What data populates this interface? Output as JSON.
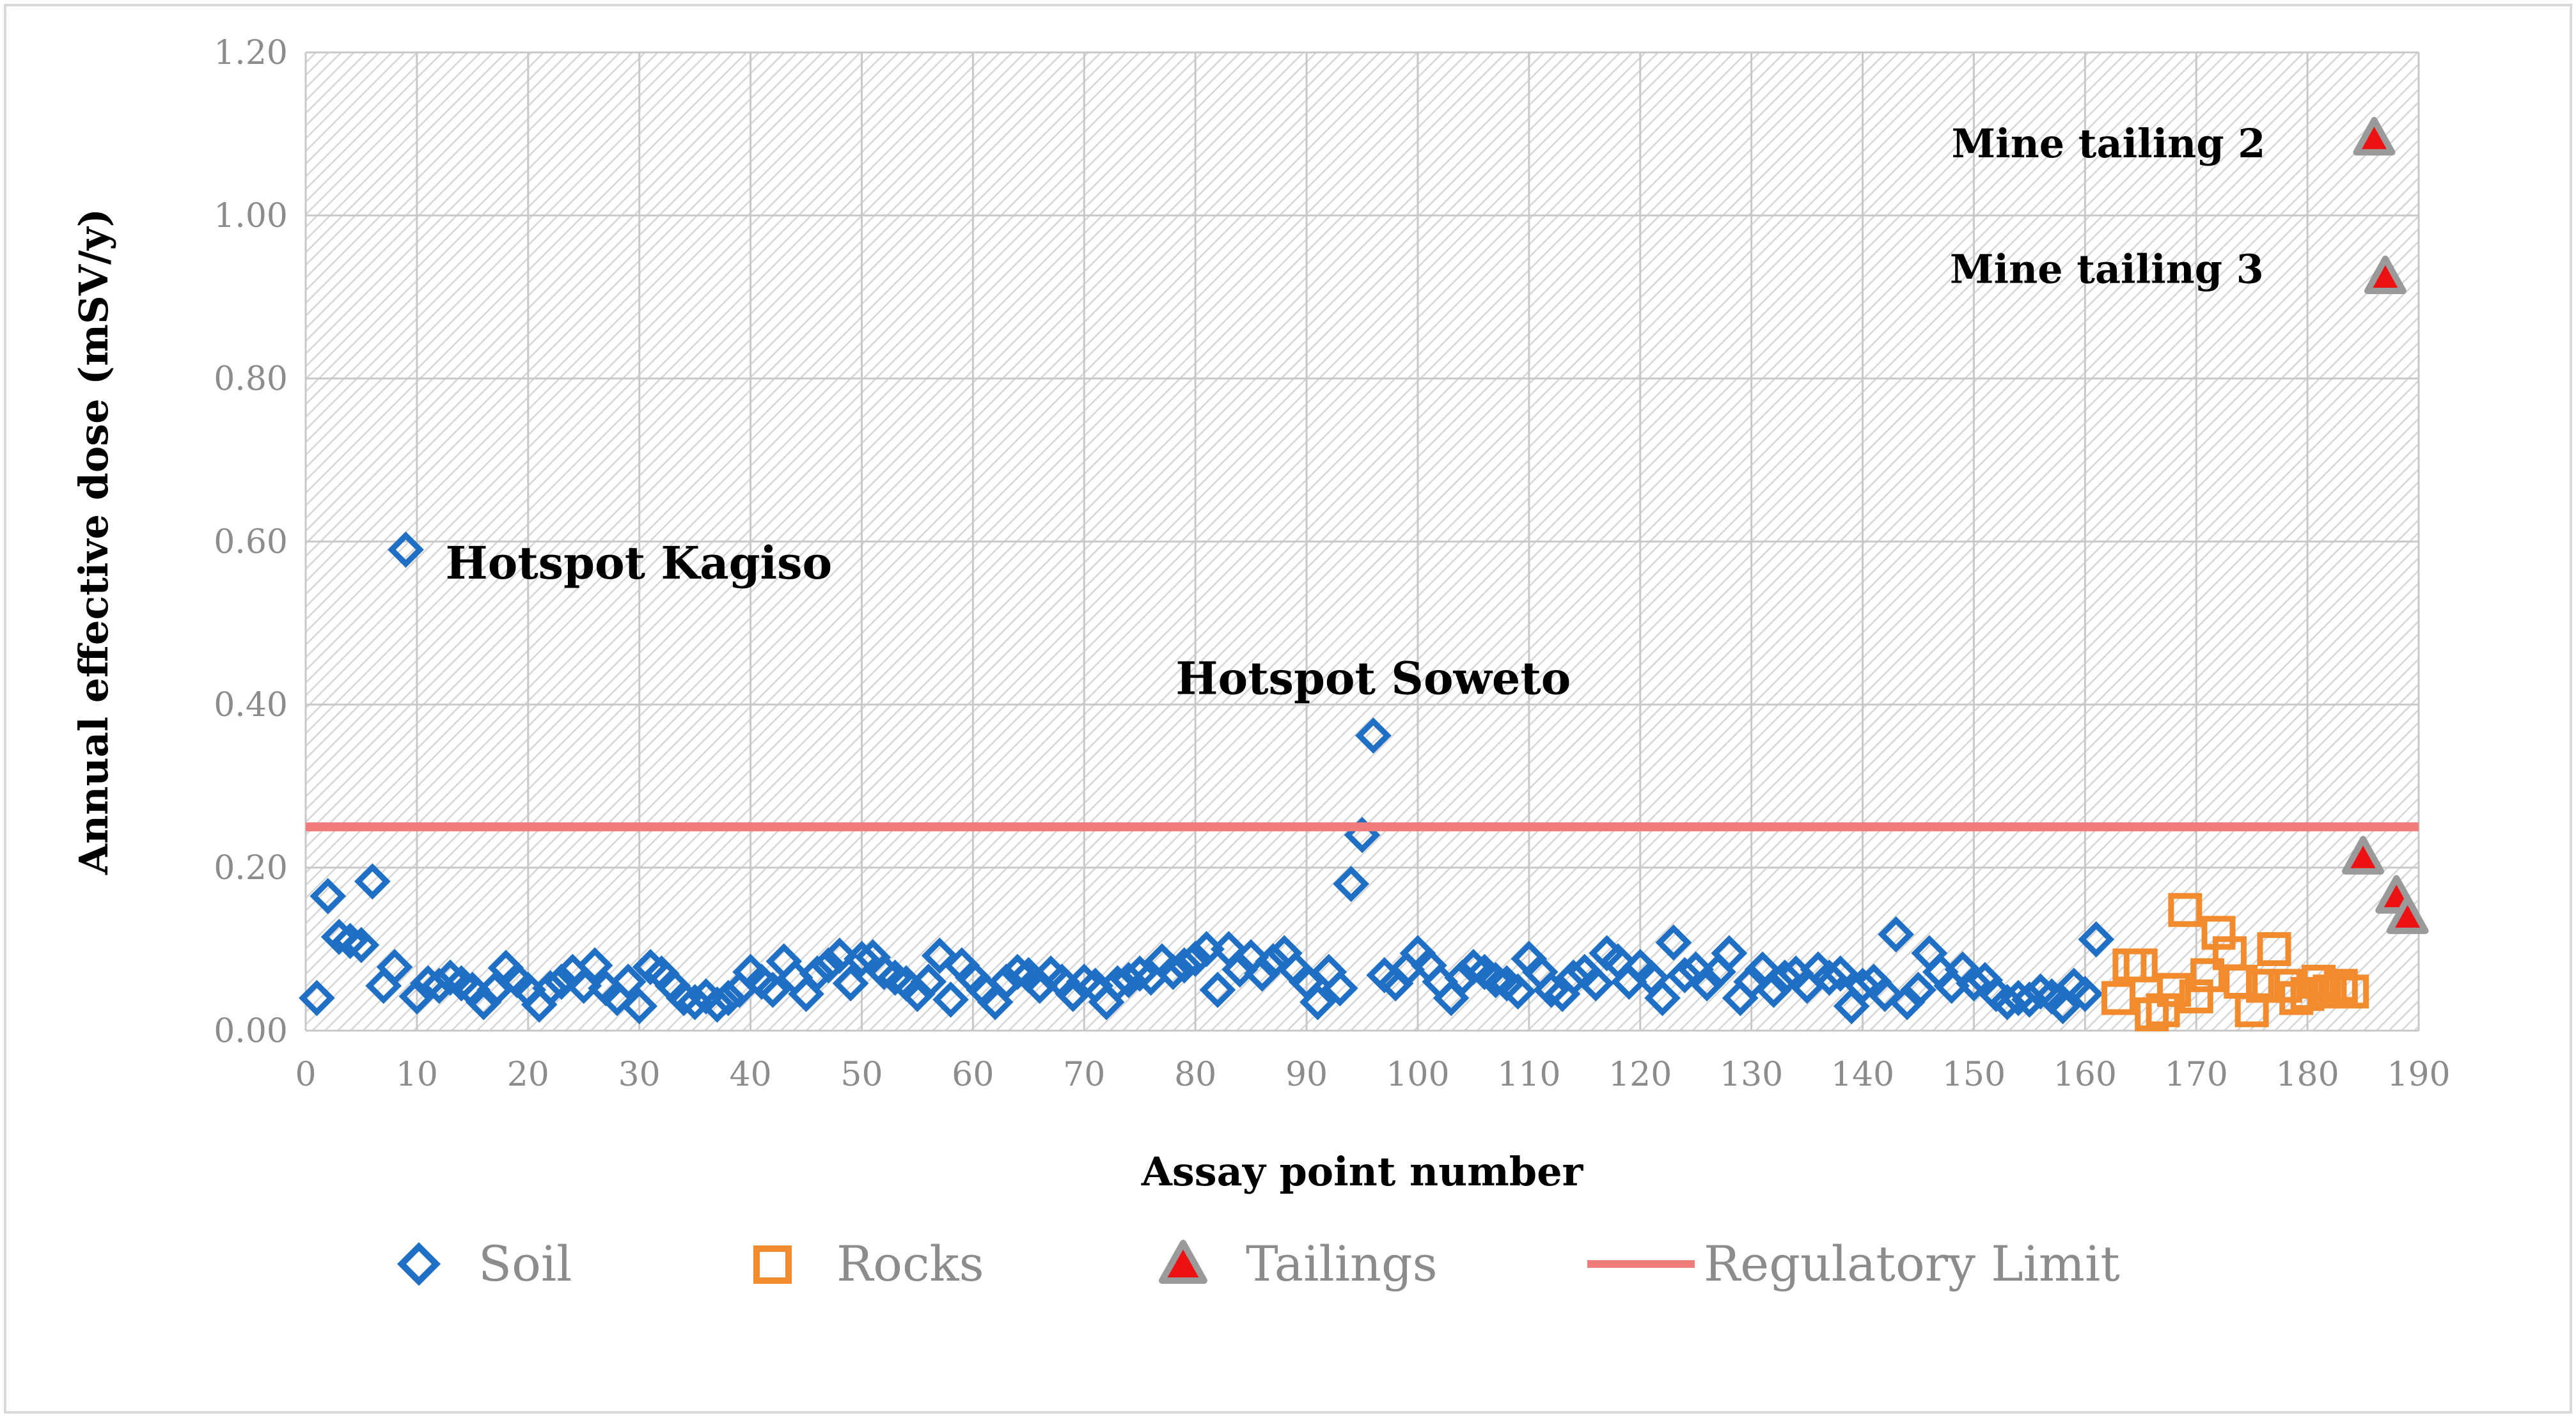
{
  "chart_data": {
    "type": "scatter",
    "title": "",
    "xlabel": "Assay point number",
    "ylabel": "Annual effective dose (mSV/y)",
    "xlim": [
      0,
      190
    ],
    "ylim": [
      0,
      1.2
    ],
    "x_ticks": [
      "0",
      "10",
      "20",
      "30",
      "40",
      "50",
      "60",
      "70",
      "80",
      "90",
      "100",
      "110",
      "120",
      "130",
      "140",
      "150",
      "160",
      "170",
      "180",
      "190"
    ],
    "y_ticks": [
      "0.00",
      "0.20",
      "0.40",
      "0.60",
      "0.80",
      "1.00",
      "1.20"
    ],
    "grid": true,
    "legend_position": "bottom",
    "series": [
      {
        "name": "Soil",
        "marker": "diamond-open",
        "color": "#1f6fc5",
        "points": [
          [
            1,
            0.04
          ],
          [
            2,
            0.165
          ],
          [
            3,
            0.115
          ],
          [
            4,
            0.11
          ],
          [
            5,
            0.105
          ],
          [
            6,
            0.183
          ],
          [
            7,
            0.055
          ],
          [
            8,
            0.078
          ],
          [
            9,
            0.59
          ],
          [
            10,
            0.042
          ],
          [
            11,
            0.058
          ],
          [
            12,
            0.055
          ],
          [
            13,
            0.065
          ],
          [
            14,
            0.058
          ],
          [
            15,
            0.05
          ],
          [
            16,
            0.035
          ],
          [
            17,
            0.05
          ],
          [
            18,
            0.077
          ],
          [
            19,
            0.062
          ],
          [
            20,
            0.05
          ],
          [
            21,
            0.032
          ],
          [
            22,
            0.052
          ],
          [
            23,
            0.06
          ],
          [
            24,
            0.072
          ],
          [
            25,
            0.055
          ],
          [
            26,
            0.08
          ],
          [
            27,
            0.052
          ],
          [
            28,
            0.04
          ],
          [
            29,
            0.06
          ],
          [
            30,
            0.03
          ],
          [
            31,
            0.078
          ],
          [
            32,
            0.07
          ],
          [
            33,
            0.055
          ],
          [
            34,
            0.04
          ],
          [
            35,
            0.035
          ],
          [
            36,
            0.042
          ],
          [
            37,
            0.032
          ],
          [
            38,
            0.04
          ],
          [
            39,
            0.05
          ],
          [
            40,
            0.072
          ],
          [
            41,
            0.06
          ],
          [
            42,
            0.05
          ],
          [
            43,
            0.085
          ],
          [
            44,
            0.065
          ],
          [
            45,
            0.045
          ],
          [
            46,
            0.07
          ],
          [
            47,
            0.08
          ],
          [
            48,
            0.092
          ],
          [
            49,
            0.058
          ],
          [
            50,
            0.088
          ],
          [
            51,
            0.09
          ],
          [
            52,
            0.072
          ],
          [
            53,
            0.065
          ],
          [
            54,
            0.058
          ],
          [
            55,
            0.045
          ],
          [
            56,
            0.06
          ],
          [
            57,
            0.092
          ],
          [
            58,
            0.038
          ],
          [
            59,
            0.08
          ],
          [
            60,
            0.065
          ],
          [
            61,
            0.05
          ],
          [
            62,
            0.035
          ],
          [
            63,
            0.06
          ],
          [
            64,
            0.072
          ],
          [
            65,
            0.068
          ],
          [
            66,
            0.055
          ],
          [
            67,
            0.07
          ],
          [
            68,
            0.06
          ],
          [
            69,
            0.045
          ],
          [
            70,
            0.06
          ],
          [
            71,
            0.055
          ],
          [
            72,
            0.035
          ],
          [
            73,
            0.058
          ],
          [
            74,
            0.062
          ],
          [
            75,
            0.07
          ],
          [
            76,
            0.065
          ],
          [
            77,
            0.085
          ],
          [
            78,
            0.072
          ],
          [
            79,
            0.08
          ],
          [
            80,
            0.088
          ],
          [
            81,
            0.1
          ],
          [
            82,
            0.05
          ],
          [
            83,
            0.1
          ],
          [
            84,
            0.075
          ],
          [
            85,
            0.09
          ],
          [
            86,
            0.07
          ],
          [
            87,
            0.085
          ],
          [
            88,
            0.095
          ],
          [
            89,
            0.075
          ],
          [
            90,
            0.06
          ],
          [
            91,
            0.035
          ],
          [
            92,
            0.072
          ],
          [
            93,
            0.052
          ],
          [
            94,
            0.18
          ],
          [
            95,
            0.24
          ],
          [
            96,
            0.362
          ],
          [
            97,
            0.068
          ],
          [
            98,
            0.058
          ],
          [
            99,
            0.075
          ],
          [
            100,
            0.095
          ],
          [
            101,
            0.08
          ],
          [
            102,
            0.06
          ],
          [
            103,
            0.04
          ],
          [
            104,
            0.065
          ],
          [
            105,
            0.078
          ],
          [
            106,
            0.072
          ],
          [
            107,
            0.062
          ],
          [
            108,
            0.058
          ],
          [
            109,
            0.048
          ],
          [
            110,
            0.088
          ],
          [
            111,
            0.072
          ],
          [
            112,
            0.05
          ],
          [
            113,
            0.045
          ],
          [
            114,
            0.065
          ],
          [
            115,
            0.072
          ],
          [
            116,
            0.058
          ],
          [
            117,
            0.095
          ],
          [
            118,
            0.085
          ],
          [
            119,
            0.06
          ],
          [
            120,
            0.078
          ],
          [
            121,
            0.065
          ],
          [
            122,
            0.04
          ],
          [
            123,
            0.108
          ],
          [
            124,
            0.068
          ],
          [
            125,
            0.075
          ],
          [
            126,
            0.058
          ],
          [
            127,
            0.072
          ],
          [
            128,
            0.095
          ],
          [
            129,
            0.04
          ],
          [
            130,
            0.06
          ],
          [
            131,
            0.075
          ],
          [
            132,
            0.05
          ],
          [
            133,
            0.065
          ],
          [
            134,
            0.07
          ],
          [
            135,
            0.055
          ],
          [
            136,
            0.075
          ],
          [
            137,
            0.065
          ],
          [
            138,
            0.07
          ],
          [
            139,
            0.03
          ],
          [
            140,
            0.055
          ],
          [
            141,
            0.06
          ],
          [
            142,
            0.045
          ],
          [
            143,
            0.118
          ],
          [
            144,
            0.035
          ],
          [
            145,
            0.05
          ],
          [
            146,
            0.095
          ],
          [
            147,
            0.072
          ],
          [
            148,
            0.055
          ],
          [
            149,
            0.075
          ],
          [
            150,
            0.058
          ],
          [
            151,
            0.062
          ],
          [
            152,
            0.045
          ],
          [
            153,
            0.035
          ],
          [
            154,
            0.04
          ],
          [
            155,
            0.038
          ],
          [
            156,
            0.048
          ],
          [
            157,
            0.042
          ],
          [
            158,
            0.03
          ],
          [
            159,
            0.055
          ],
          [
            160,
            0.045
          ],
          [
            161,
            0.112
          ]
        ]
      },
      {
        "name": "Rocks",
        "marker": "square-open",
        "color": "#f28a2e",
        "points": [
          [
            163,
            0.04
          ],
          [
            164,
            0.08
          ],
          [
            165,
            0.08
          ],
          [
            166,
            0.02
          ],
          [
            167,
            0.025
          ],
          [
            168,
            0.05
          ],
          [
            169,
            0.148
          ],
          [
            170,
            0.042
          ],
          [
            171,
            0.068
          ],
          [
            172,
            0.12
          ],
          [
            173,
            0.095
          ],
          [
            174,
            0.06
          ],
          [
            175,
            0.025
          ],
          [
            176,
            0.055
          ],
          [
            177,
            0.1
          ],
          [
            178,
            0.055
          ],
          [
            179,
            0.04
          ],
          [
            180,
            0.045
          ],
          [
            181,
            0.06
          ],
          [
            182,
            0.048
          ],
          [
            183,
            0.055
          ],
          [
            184,
            0.048
          ]
        ]
      },
      {
        "name": "Tailings",
        "marker": "triangle",
        "color": "#ee1111",
        "edge_color": "#9a9a9a",
        "points": [
          [
            185,
            0.213
          ],
          [
            186,
            1.095
          ],
          [
            187,
            0.925
          ],
          [
            188,
            0.165
          ],
          [
            189,
            0.14
          ]
        ]
      },
      {
        "name": "Regulatory Limit",
        "type": "line",
        "color": "#f07b7b",
        "points": [
          [
            0,
            0.25
          ],
          [
            190,
            0.25
          ]
        ]
      }
    ],
    "annotations": [
      {
        "text": "Hotspot Kagiso",
        "x": 9,
        "y": 0.59
      },
      {
        "text": "Hotspot Soweto",
        "x": 96,
        "y": 0.362
      },
      {
        "text": "Mine tailing 2",
        "x": 186,
        "y": 1.095
      },
      {
        "text": "Mine tailing 3",
        "x": 187,
        "y": 0.925
      }
    ]
  }
}
